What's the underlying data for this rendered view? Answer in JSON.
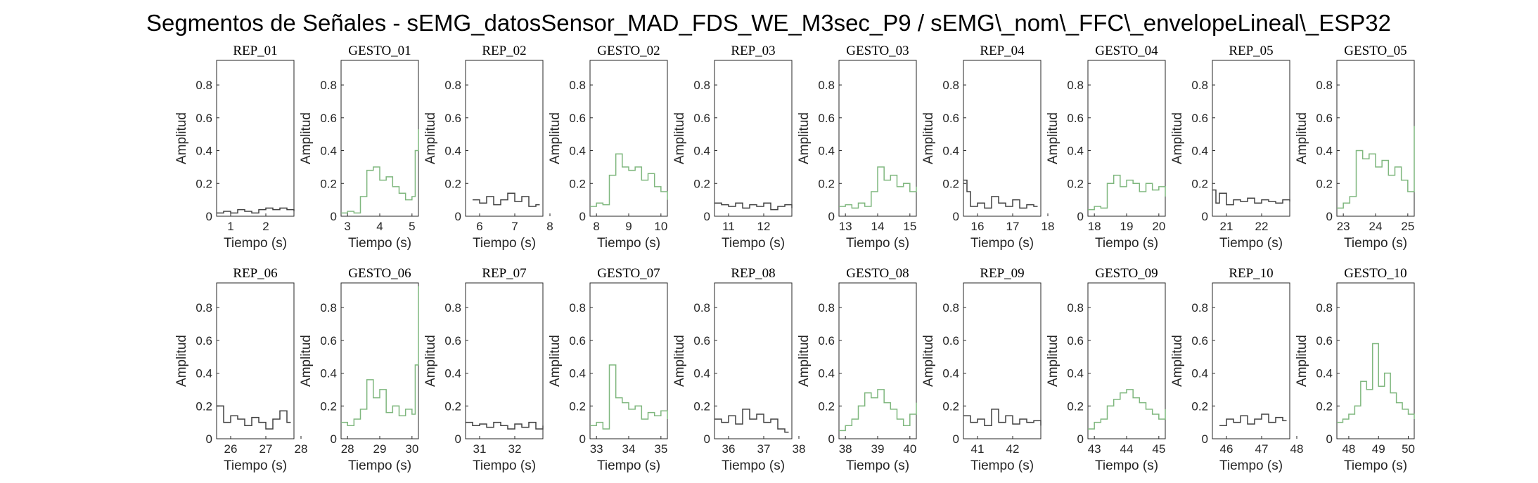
{
  "figure": {
    "title": "Segmentos de Señales - sEMG_datosSensor_MAD_FDS_WE_M3sec_P9 / sEMG\\_nom\\_FFC\\_envelopeLineal\\_ESP32"
  },
  "colors": {
    "rep": "#404040",
    "gesto": "#7fb77e",
    "axis": "#262626"
  },
  "chart_data": [
    {
      "type": "line",
      "title": "REP_01",
      "subtitle": "REP_01",
      "xlabel": "Tiempo (s)",
      "ylabel": "Amplitud",
      "xlim": [
        0.6,
        2.8
      ],
      "ylim": [
        0,
        0.95
      ],
      "xticks": [
        1,
        2
      ],
      "yticks": [
        0,
        0.2,
        0.4,
        0.6,
        0.8
      ],
      "kind": "rep",
      "series": [
        {
          "x": [
            0.6,
            0.8,
            1.0,
            1.2,
            1.4,
            1.6,
            1.8,
            2.0,
            2.2,
            2.4,
            2.6,
            2.8
          ],
          "y": [
            0.02,
            0.03,
            0.02,
            0.04,
            0.03,
            0.02,
            0.04,
            0.05,
            0.04,
            0.05,
            0.04,
            0.03
          ]
        }
      ]
    },
    {
      "type": "line",
      "title": "GESTO_01",
      "subtitle": "GESTO_01",
      "xlabel": "Tiempo (s)",
      "ylabel": "Amplitud",
      "xlim": [
        2.8,
        5.2
      ],
      "ylim": [
        0,
        0.95
      ],
      "xticks": [
        3,
        4,
        5
      ],
      "yticks": [
        0,
        0.2,
        0.4,
        0.6,
        0.8
      ],
      "kind": "gesto",
      "series": [
        {
          "x": [
            2.8,
            3.0,
            3.2,
            3.4,
            3.6,
            3.8,
            4.0,
            4.2,
            4.4,
            4.6,
            4.8,
            5.0,
            5.1,
            5.2
          ],
          "y": [
            0.02,
            0.03,
            0.02,
            0.12,
            0.28,
            0.3,
            0.22,
            0.24,
            0.18,
            0.14,
            0.1,
            0.12,
            0.4,
            0.53
          ]
        }
      ]
    },
    {
      "type": "line",
      "title": "REP_02",
      "subtitle": "REP_02",
      "xlabel": "Tiempo (s)",
      "ylabel": "Amplitud",
      "xlim": [
        5.6,
        7.8
      ],
      "ylim": [
        0,
        0.95
      ],
      "xticks": [
        6,
        7,
        8
      ],
      "yticks": [
        0,
        0.2,
        0.4,
        0.6,
        0.8
      ],
      "kind": "rep",
      "series": [
        {
          "x": [
            5.8,
            6.0,
            6.2,
            6.4,
            6.6,
            6.8,
            7.0,
            7.2,
            7.4,
            7.6
          ],
          "y": [
            0.1,
            0.08,
            0.12,
            0.07,
            0.1,
            0.14,
            0.09,
            0.12,
            0.06,
            0.07
          ]
        }
      ]
    },
    {
      "type": "line",
      "title": "GESTO_02",
      "subtitle": "GESTO_02",
      "xlabel": "Tiempo (s)",
      "ylabel": "Amplitud",
      "xlim": [
        7.8,
        10.2
      ],
      "ylim": [
        0,
        0.95
      ],
      "xticks": [
        8,
        9,
        10
      ],
      "yticks": [
        0,
        0.2,
        0.4,
        0.6,
        0.8
      ],
      "kind": "gesto",
      "series": [
        {
          "x": [
            7.8,
            8.0,
            8.2,
            8.4,
            8.6,
            8.8,
            9.0,
            9.2,
            9.4,
            9.6,
            9.8,
            10.0,
            10.2
          ],
          "y": [
            0.06,
            0.08,
            0.07,
            0.25,
            0.38,
            0.3,
            0.28,
            0.3,
            0.22,
            0.26,
            0.18,
            0.15,
            0.1
          ]
        }
      ]
    },
    {
      "type": "line",
      "title": "REP_03",
      "subtitle": "REP_03",
      "xlabel": "Tiempo (s)",
      "ylabel": "Amplitud",
      "xlim": [
        10.6,
        12.8
      ],
      "ylim": [
        0,
        0.95
      ],
      "xticks": [
        11,
        12
      ],
      "yticks": [
        0,
        0.2,
        0.4,
        0.6,
        0.8
      ],
      "kind": "rep",
      "series": [
        {
          "x": [
            10.6,
            10.8,
            11.0,
            11.2,
            11.4,
            11.6,
            11.8,
            12.0,
            12.2,
            12.4,
            12.6,
            12.8
          ],
          "y": [
            0.08,
            0.07,
            0.06,
            0.08,
            0.05,
            0.07,
            0.06,
            0.08,
            0.04,
            0.06,
            0.07,
            0.05
          ]
        }
      ]
    },
    {
      "type": "line",
      "title": "GESTO_03",
      "subtitle": "GESTO_03",
      "xlabel": "Tiempo (s)",
      "ylabel": "Amplitud",
      "xlim": [
        12.8,
        15.2
      ],
      "ylim": [
        0,
        0.95
      ],
      "xticks": [
        13,
        14,
        15
      ],
      "yticks": [
        0,
        0.2,
        0.4,
        0.6,
        0.8
      ],
      "kind": "gesto",
      "series": [
        {
          "x": [
            12.8,
            13.0,
            13.2,
            13.4,
            13.6,
            13.8,
            14.0,
            14.2,
            14.4,
            14.6,
            14.8,
            15.0,
            15.2
          ],
          "y": [
            0.06,
            0.07,
            0.05,
            0.08,
            0.06,
            0.15,
            0.3,
            0.22,
            0.25,
            0.18,
            0.2,
            0.15,
            0.18
          ]
        }
      ]
    },
    {
      "type": "line",
      "title": "REP_04",
      "subtitle": "REP_04",
      "xlabel": "Tiempo (s)",
      "ylabel": "Amplitud",
      "xlim": [
        15.6,
        17.8
      ],
      "ylim": [
        0,
        0.95
      ],
      "xticks": [
        16,
        17,
        18
      ],
      "yticks": [
        0,
        0.2,
        0.4,
        0.6,
        0.8
      ],
      "kind": "rep",
      "series": [
        {
          "x": [
            15.6,
            15.7,
            15.8,
            16.0,
            16.2,
            16.4,
            16.6,
            16.8,
            17.0,
            17.2,
            17.4,
            17.6
          ],
          "y": [
            0.22,
            0.15,
            0.06,
            0.08,
            0.05,
            0.12,
            0.08,
            0.06,
            0.1,
            0.05,
            0.07,
            0.06
          ]
        }
      ]
    },
    {
      "type": "line",
      "title": "GESTO_04",
      "subtitle": "GESTO_04",
      "xlabel": "Tiempo (s)",
      "ylabel": "Amplitud",
      "xlim": [
        17.8,
        20.2
      ],
      "ylim": [
        0,
        0.95
      ],
      "xticks": [
        18,
        19,
        20
      ],
      "yticks": [
        0,
        0.2,
        0.4,
        0.6,
        0.8
      ],
      "kind": "gesto",
      "series": [
        {
          "x": [
            17.8,
            18.0,
            18.2,
            18.4,
            18.6,
            18.8,
            19.0,
            19.2,
            19.4,
            19.6,
            19.8,
            20.0,
            20.2
          ],
          "y": [
            0.04,
            0.06,
            0.05,
            0.2,
            0.25,
            0.18,
            0.22,
            0.2,
            0.15,
            0.2,
            0.16,
            0.18,
            0.12
          ]
        }
      ]
    },
    {
      "type": "line",
      "title": "REP_05",
      "subtitle": "REP_05",
      "xlabel": "Tiempo (s)",
      "ylabel": "Amplitud",
      "xlim": [
        20.6,
        22.8
      ],
      "ylim": [
        0,
        0.95
      ],
      "xticks": [
        21,
        22
      ],
      "yticks": [
        0,
        0.2,
        0.4,
        0.6,
        0.8
      ],
      "kind": "rep",
      "series": [
        {
          "x": [
            20.6,
            20.7,
            20.8,
            21.0,
            21.2,
            21.4,
            21.6,
            21.8,
            22.0,
            22.2,
            22.4,
            22.6,
            22.8
          ],
          "y": [
            0.16,
            0.08,
            0.14,
            0.07,
            0.1,
            0.09,
            0.11,
            0.08,
            0.1,
            0.09,
            0.08,
            0.1,
            0.09
          ]
        }
      ]
    },
    {
      "type": "line",
      "title": "GESTO_05",
      "subtitle": "GESTO_05",
      "xlabel": "Tiempo (s)",
      "ylabel": "Amplitud",
      "xlim": [
        22.8,
        25.2
      ],
      "ylim": [
        0,
        0.95
      ],
      "xticks": [
        23,
        24,
        25
      ],
      "yticks": [
        0,
        0.2,
        0.4,
        0.6,
        0.8
      ],
      "kind": "gesto",
      "series": [
        {
          "x": [
            22.8,
            23.0,
            23.2,
            23.4,
            23.6,
            23.8,
            24.0,
            24.2,
            24.4,
            24.6,
            24.8,
            25.0,
            25.2
          ],
          "y": [
            0.05,
            0.08,
            0.12,
            0.4,
            0.35,
            0.38,
            0.3,
            0.34,
            0.25,
            0.3,
            0.22,
            0.15,
            0.55
          ]
        }
      ]
    },
    {
      "type": "line",
      "title": "REP_06",
      "subtitle": "REP_06",
      "xlabel": "Tiempo (s)",
      "ylabel": "Amplitud",
      "xlim": [
        25.6,
        27.8
      ],
      "ylim": [
        0,
        0.95
      ],
      "xticks": [
        26,
        27,
        28
      ],
      "yticks": [
        0,
        0.2,
        0.4,
        0.6,
        0.8
      ],
      "kind": "rep",
      "series": [
        {
          "x": [
            25.6,
            25.8,
            26.0,
            26.2,
            26.4,
            26.6,
            26.8,
            27.0,
            27.2,
            27.4,
            27.6
          ],
          "y": [
            0.2,
            0.1,
            0.14,
            0.12,
            0.08,
            0.13,
            0.1,
            0.06,
            0.12,
            0.17,
            0.1
          ]
        }
      ]
    },
    {
      "type": "line",
      "title": "GESTO_06",
      "subtitle": "GESTO_06",
      "xlabel": "Tiempo (s)",
      "ylabel": "Amplitud",
      "xlim": [
        27.8,
        30.2
      ],
      "ylim": [
        0,
        0.95
      ],
      "xticks": [
        28,
        29,
        30
      ],
      "yticks": [
        0,
        0.2,
        0.4,
        0.6,
        0.8
      ],
      "kind": "gesto",
      "series": [
        {
          "x": [
            27.8,
            28.0,
            28.2,
            28.4,
            28.6,
            28.8,
            29.0,
            29.2,
            29.4,
            29.6,
            29.8,
            30.0,
            30.1,
            30.2
          ],
          "y": [
            0.1,
            0.08,
            0.12,
            0.18,
            0.36,
            0.25,
            0.3,
            0.16,
            0.2,
            0.14,
            0.18,
            0.15,
            0.45,
            0.93
          ]
        }
      ]
    },
    {
      "type": "line",
      "title": "REP_07",
      "subtitle": "REP_07",
      "xlabel": "Tiempo (s)",
      "ylabel": "Amplitud",
      "xlim": [
        30.6,
        32.8
      ],
      "ylim": [
        0,
        0.95
      ],
      "xticks": [
        31,
        32
      ],
      "yticks": [
        0,
        0.2,
        0.4,
        0.6,
        0.8
      ],
      "kind": "rep",
      "series": [
        {
          "x": [
            30.6,
            30.8,
            31.0,
            31.2,
            31.4,
            31.6,
            31.8,
            32.0,
            32.2,
            32.4,
            32.6,
            32.8
          ],
          "y": [
            0.1,
            0.08,
            0.09,
            0.07,
            0.1,
            0.08,
            0.06,
            0.09,
            0.07,
            0.1,
            0.06,
            0.08
          ]
        }
      ]
    },
    {
      "type": "line",
      "title": "GESTO_07",
      "subtitle": "GESTO_07",
      "xlabel": "Tiempo (s)",
      "ylabel": "Amplitud",
      "xlim": [
        32.8,
        35.2
      ],
      "ylim": [
        0,
        0.95
      ],
      "xticks": [
        33,
        34,
        35
      ],
      "yticks": [
        0,
        0.2,
        0.4,
        0.6,
        0.8
      ],
      "kind": "gesto",
      "series": [
        {
          "x": [
            32.8,
            33.0,
            33.2,
            33.4,
            33.6,
            33.8,
            34.0,
            34.2,
            34.4,
            34.6,
            34.8,
            35.0,
            35.2
          ],
          "y": [
            0.08,
            0.1,
            0.06,
            0.45,
            0.25,
            0.22,
            0.18,
            0.2,
            0.12,
            0.16,
            0.14,
            0.17,
            0.12
          ]
        }
      ]
    },
    {
      "type": "line",
      "title": "REP_08",
      "subtitle": "REP_08",
      "xlabel": "Tiempo (s)",
      "ylabel": "Amplitud",
      "xlim": [
        35.6,
        37.8
      ],
      "ylim": [
        0,
        0.95
      ],
      "xticks": [
        36,
        37,
        38
      ],
      "yticks": [
        0,
        0.2,
        0.4,
        0.6,
        0.8
      ],
      "kind": "rep",
      "series": [
        {
          "x": [
            35.6,
            35.8,
            36.0,
            36.2,
            36.4,
            36.6,
            36.8,
            37.0,
            37.2,
            37.4,
            37.6
          ],
          "y": [
            0.12,
            0.1,
            0.14,
            0.09,
            0.18,
            0.12,
            0.15,
            0.1,
            0.12,
            0.06,
            0.04
          ]
        }
      ]
    },
    {
      "type": "line",
      "title": "GESTO_08",
      "subtitle": "GESTO_08",
      "xlabel": "Tiempo (s)",
      "ylabel": "Amplitud",
      "xlim": [
        37.8,
        40.2
      ],
      "ylim": [
        0,
        0.95
      ],
      "xticks": [
        38,
        39,
        40
      ],
      "yticks": [
        0,
        0.2,
        0.4,
        0.6,
        0.8
      ],
      "kind": "gesto",
      "series": [
        {
          "x": [
            37.8,
            38.0,
            38.2,
            38.4,
            38.6,
            38.8,
            39.0,
            39.2,
            39.4,
            39.6,
            39.8,
            40.0,
            40.2
          ],
          "y": [
            0.05,
            0.08,
            0.12,
            0.2,
            0.28,
            0.25,
            0.3,
            0.22,
            0.18,
            0.12,
            0.08,
            0.15,
            0.22
          ]
        }
      ]
    },
    {
      "type": "line",
      "title": "REP_09",
      "subtitle": "REP_09",
      "xlabel": "Tiempo (s)",
      "ylabel": "Amplitud",
      "xlim": [
        40.6,
        42.8
      ],
      "ylim": [
        0,
        0.95
      ],
      "xticks": [
        41,
        42
      ],
      "yticks": [
        0,
        0.2,
        0.4,
        0.6,
        0.8
      ],
      "kind": "rep",
      "series": [
        {
          "x": [
            40.6,
            40.8,
            41.0,
            41.2,
            41.4,
            41.6,
            41.8,
            42.0,
            42.2,
            42.4,
            42.6,
            42.8
          ],
          "y": [
            0.14,
            0.1,
            0.12,
            0.08,
            0.18,
            0.1,
            0.14,
            0.09,
            0.12,
            0.1,
            0.11,
            0.08
          ]
        }
      ]
    },
    {
      "type": "line",
      "title": "GESTO_09",
      "subtitle": "GESTO_09",
      "xlabel": "Tiempo (s)",
      "ylabel": "Amplitud",
      "xlim": [
        42.8,
        45.2
      ],
      "ylim": [
        0,
        0.95
      ],
      "xticks": [
        43,
        44,
        45
      ],
      "yticks": [
        0,
        0.2,
        0.4,
        0.6,
        0.8
      ],
      "kind": "gesto",
      "series": [
        {
          "x": [
            42.8,
            43.0,
            43.2,
            43.4,
            43.6,
            43.8,
            44.0,
            44.2,
            44.4,
            44.6,
            44.8,
            45.0,
            45.2
          ],
          "y": [
            0.06,
            0.1,
            0.12,
            0.2,
            0.24,
            0.28,
            0.3,
            0.25,
            0.22,
            0.18,
            0.15,
            0.12,
            0.18
          ]
        }
      ]
    },
    {
      "type": "line",
      "title": "REP_10",
      "subtitle": "REP_10",
      "xlabel": "Tiempo (s)",
      "ylabel": "Amplitud",
      "xlim": [
        45.6,
        47.8
      ],
      "ylim": [
        0,
        0.95
      ],
      "xticks": [
        46,
        47,
        48
      ],
      "yticks": [
        0,
        0.2,
        0.4,
        0.6,
        0.8
      ],
      "kind": "rep",
      "series": [
        {
          "x": [
            45.8,
            46.0,
            46.2,
            46.4,
            46.6,
            46.8,
            47.0,
            47.2,
            47.4,
            47.6
          ],
          "y": [
            0.08,
            0.12,
            0.1,
            0.14,
            0.09,
            0.12,
            0.15,
            0.1,
            0.13,
            0.11
          ]
        }
      ]
    },
    {
      "type": "line",
      "title": "GESTO_10",
      "subtitle": "GESTO_10",
      "xlabel": "Tiempo (s)",
      "ylabel": "Amplitud",
      "xlim": [
        47.6,
        50.2
      ],
      "ylim": [
        0,
        0.95
      ],
      "xticks": [
        48,
        49,
        50
      ],
      "yticks": [
        0,
        0.2,
        0.4,
        0.6,
        0.8
      ],
      "kind": "gesto",
      "series": [
        {
          "x": [
            47.6,
            47.8,
            48.0,
            48.2,
            48.4,
            48.6,
            48.8,
            49.0,
            49.2,
            49.4,
            49.6,
            49.8,
            50.0,
            50.2
          ],
          "y": [
            0.1,
            0.12,
            0.15,
            0.2,
            0.35,
            0.3,
            0.58,
            0.32,
            0.4,
            0.28,
            0.22,
            0.18,
            0.15,
            0.12
          ]
        }
      ]
    }
  ]
}
